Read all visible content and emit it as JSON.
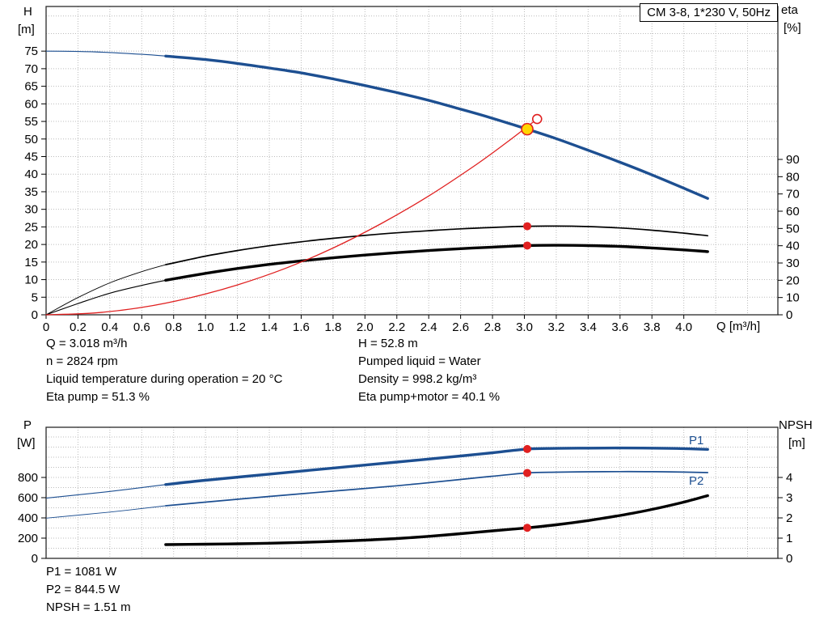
{
  "title_box": "CM 3-8, 1*230 V, 50Hz",
  "colors": {
    "curve_blue": "#1d4f91",
    "curve_black": "#000000",
    "curve_red": "#e02020",
    "marker_yellow": "#ffd500",
    "marker_red": "#e02020",
    "grid": "#bcbcbc"
  },
  "axes": {
    "top_left": {
      "name": "H",
      "unit": "[m]"
    },
    "top_right": {
      "name": "eta",
      "unit": "[%]"
    },
    "x": "Q [m³/h]",
    "bottom_left": {
      "name": "P",
      "unit": "[W]"
    },
    "bottom_right": {
      "name": "NPSH",
      "unit": "[m]"
    }
  },
  "info_top_left": [
    "Q = 3.018 m³/h",
    "n = 2824 rpm",
    "Liquid temperature during operation = 20 °C",
    "Eta pump = 51.3 %"
  ],
  "info_top_right": [
    "H = 52.8 m",
    "Pumped liquid = Water",
    "Density = 998.2 kg/m³",
    "Eta pump+motor = 40.1 %"
  ],
  "info_bottom": [
    "P1 = 1081 W",
    "P2 = 844.5 W",
    "NPSH = 1.51 m"
  ],
  "chart_data": [
    {
      "type": "line",
      "title": "CM 3-8, 1*230 V, 50Hz",
      "x_axis": {
        "label": "Q [m³/h]",
        "min": 0,
        "max": 4.59,
        "grid_step": 0.2,
        "ticks": [
          0,
          0.2,
          0.4,
          0.6,
          0.8,
          1.0,
          1.2,
          1.4,
          1.6,
          1.8,
          2.0,
          2.2,
          2.4,
          2.6,
          2.8,
          3.0,
          3.2,
          3.4,
          3.6,
          3.8,
          4.0
        ]
      },
      "y_left": {
        "label": "H [m]",
        "min": 0,
        "max": 87.7,
        "grid_step": 5,
        "ticks": [
          0,
          5,
          10,
          15,
          20,
          25,
          30,
          35,
          40,
          45,
          50,
          55,
          60,
          65,
          70,
          75
        ]
      },
      "y_right": {
        "label": "eta [%]",
        "min": 0,
        "max": 178.6,
        "ticks": [
          0,
          10,
          20,
          30,
          40,
          50,
          60,
          70,
          80,
          90
        ]
      },
      "series": [
        {
          "name": "H",
          "axis": "left",
          "color": "#1d4f91",
          "width": 3.4,
          "thin_until": 0.75,
          "points": [
            [
              0,
              75
            ],
            [
              0.2,
              74.9
            ],
            [
              0.4,
              74.6
            ],
            [
              0.6,
              74.1
            ],
            [
              0.75,
              73.6
            ],
            [
              1.0,
              72.6
            ],
            [
              1.2,
              71.5
            ],
            [
              1.4,
              70.2
            ],
            [
              1.6,
              68.8
            ],
            [
              1.8,
              67.1
            ],
            [
              2.0,
              65.2
            ],
            [
              2.2,
              63.2
            ],
            [
              2.4,
              61.0
            ],
            [
              2.6,
              58.5
            ],
            [
              2.8,
              55.9
            ],
            [
              3.018,
              52.8
            ],
            [
              3.2,
              50.1
            ],
            [
              3.4,
              46.8
            ],
            [
              3.6,
              43.4
            ],
            [
              3.8,
              39.8
            ],
            [
              4.0,
              36.0
            ],
            [
              4.15,
              33.1
            ]
          ]
        },
        {
          "name": "Eta pump",
          "axis": "right",
          "color": "#000000",
          "width": 1.7,
          "thin_until": 0.75,
          "points": [
            [
              0,
              0
            ],
            [
              0.2,
              10
            ],
            [
              0.4,
              18.5
            ],
            [
              0.6,
              25
            ],
            [
              0.75,
              29
            ],
            [
              1.0,
              34
            ],
            [
              1.2,
              37.2
            ],
            [
              1.4,
              40
            ],
            [
              1.6,
              42.3
            ],
            [
              1.8,
              44.3
            ],
            [
              2.0,
              46
            ],
            [
              2.2,
              47.5
            ],
            [
              2.4,
              48.7
            ],
            [
              2.6,
              49.8
            ],
            [
              2.8,
              50.6
            ],
            [
              3.018,
              51.3
            ],
            [
              3.2,
              51.4
            ],
            [
              3.4,
              51.1
            ],
            [
              3.6,
              50.3
            ],
            [
              3.8,
              49.0
            ],
            [
              4.0,
              47.3
            ],
            [
              4.15,
              45.8
            ]
          ]
        },
        {
          "name": "Eta pump+motor",
          "axis": "right",
          "color": "#000000",
          "width": 3.4,
          "thin_until": 0.75,
          "points": [
            [
              0,
              0
            ],
            [
              0.2,
              6.5
            ],
            [
              0.4,
              12.5
            ],
            [
              0.6,
              17
            ],
            [
              0.75,
              20
            ],
            [
              1.0,
              24
            ],
            [
              1.2,
              26.8
            ],
            [
              1.4,
              29.2
            ],
            [
              1.6,
              31.2
            ],
            [
              1.8,
              33
            ],
            [
              2.0,
              34.6
            ],
            [
              2.2,
              36
            ],
            [
              2.4,
              37.2
            ],
            [
              2.6,
              38.3
            ],
            [
              2.8,
              39.2
            ],
            [
              3.018,
              40.1
            ],
            [
              3.2,
              40.25
            ],
            [
              3.4,
              40.1
            ],
            [
              3.6,
              39.6
            ],
            [
              3.8,
              38.7
            ],
            [
              4.0,
              37.6
            ],
            [
              4.15,
              36.6
            ]
          ]
        },
        {
          "name": "System curve",
          "axis": "left",
          "color": "#e02020",
          "width": 1.3,
          "points": [
            [
              0,
              0
            ],
            [
              0.3,
              0.5
            ],
            [
              0.6,
              2.1
            ],
            [
              0.9,
              4.8
            ],
            [
              1.2,
              8.5
            ],
            [
              1.5,
              13.2
            ],
            [
              1.8,
              19.0
            ],
            [
              2.1,
              25.9
            ],
            [
              2.4,
              33.8
            ],
            [
              2.7,
              42.8
            ],
            [
              2.9,
              49.4
            ],
            [
              3.08,
              55.7
            ]
          ]
        }
      ],
      "markers": [
        {
          "type": "dot-red",
          "axis": "right",
          "x": 3.018,
          "y": 51.3
        },
        {
          "type": "dot-red",
          "axis": "right",
          "x": 3.018,
          "y": 40.1
        },
        {
          "type": "open-red",
          "axis": "left",
          "x": 3.08,
          "y": 55.7
        },
        {
          "type": "duty-yellow",
          "axis": "left",
          "x": 3.018,
          "y": 52.8
        }
      ]
    },
    {
      "type": "line",
      "title": "Power and NPSH curves",
      "x_axis": {
        "label": "Q [m³/h]",
        "min": 0,
        "max": 4.59,
        "grid_step": 0.2,
        "ticks": []
      },
      "y_left": {
        "label": "P [W]",
        "min": 0,
        "max": 1296,
        "grid_step": 100,
        "ticks": [
          0,
          200,
          400,
          600,
          800
        ]
      },
      "y_right": {
        "label": "NPSH [m]",
        "min": 0,
        "max": 6.48,
        "ticks": [
          0,
          1,
          2,
          3,
          4
        ]
      },
      "series": [
        {
          "name": "P1",
          "axis": "left",
          "color": "#1d4f91",
          "width": 3.4,
          "thin_until": 0.75,
          "points": [
            [
              0,
              595
            ],
            [
              0.4,
              662
            ],
            [
              0.75,
              730
            ],
            [
              1.0,
              772
            ],
            [
              1.4,
              833
            ],
            [
              1.8,
              893
            ],
            [
              2.2,
              952
            ],
            [
              2.6,
              1012
            ],
            [
              2.8,
              1044
            ],
            [
              3.018,
              1081
            ],
            [
              3.2,
              1087
            ],
            [
              3.4,
              1090
            ],
            [
              3.6,
              1091
            ],
            [
              3.8,
              1090
            ],
            [
              4.0,
              1085
            ],
            [
              4.15,
              1078
            ]
          ]
        },
        {
          "name": "P2",
          "axis": "left",
          "color": "#1d4f91",
          "width": 1.7,
          "thin_until": 0.75,
          "points": [
            [
              0,
              398
            ],
            [
              0.4,
              458
            ],
            [
              0.75,
              520
            ],
            [
              1.0,
              556
            ],
            [
              1.4,
              612
            ],
            [
              1.8,
              665
            ],
            [
              2.2,
              718
            ],
            [
              2.6,
              780
            ],
            [
              2.8,
              812
            ],
            [
              3.018,
              844.5
            ],
            [
              3.2,
              852
            ],
            [
              3.4,
              856
            ],
            [
              3.6,
              858
            ],
            [
              3.8,
              857
            ],
            [
              4.0,
              853
            ],
            [
              4.15,
              848
            ]
          ]
        },
        {
          "name": "NPSH",
          "axis": "right",
          "color": "#000000",
          "width": 3.4,
          "points": [
            [
              0.75,
              0.68
            ],
            [
              1.0,
              0.7
            ],
            [
              1.2,
              0.72
            ],
            [
              1.4,
              0.75
            ],
            [
              1.6,
              0.79
            ],
            [
              1.8,
              0.84
            ],
            [
              2.0,
              0.9
            ],
            [
              2.2,
              0.98
            ],
            [
              2.4,
              1.09
            ],
            [
              2.6,
              1.22
            ],
            [
              2.8,
              1.36
            ],
            [
              3.018,
              1.51
            ],
            [
              3.2,
              1.66
            ],
            [
              3.4,
              1.87
            ],
            [
              3.6,
              2.12
            ],
            [
              3.8,
              2.42
            ],
            [
              4.0,
              2.78
            ],
            [
              4.15,
              3.1
            ]
          ]
        }
      ],
      "markers": [
        {
          "type": "dot-red",
          "axis": "left",
          "x": 3.018,
          "y": 1081
        },
        {
          "type": "dot-red",
          "axis": "left",
          "x": 3.018,
          "y": 844.5
        },
        {
          "type": "dot-red",
          "axis": "right",
          "x": 3.018,
          "y": 1.51
        }
      ]
    }
  ]
}
